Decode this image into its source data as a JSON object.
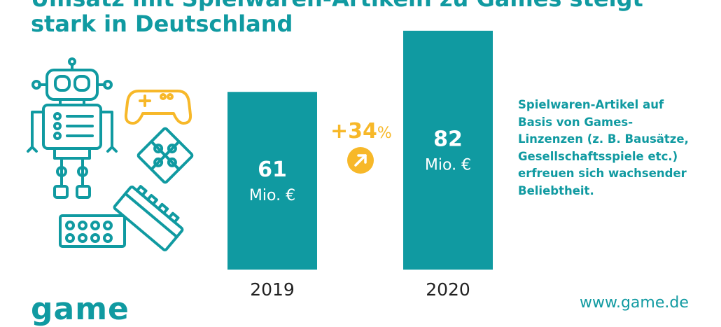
{
  "title": {
    "line1": "Umsatz mit Spielwaren-Artikeln zu Games steigt",
    "line2": "stark in Deutschland"
  },
  "chart_data": {
    "type": "bar",
    "categories": [
      "2019",
      "2020"
    ],
    "values": [
      61,
      82
    ],
    "unit": "Mio. €",
    "ylim": [
      0,
      100
    ],
    "bar_color": "#109aa1",
    "grid": false,
    "annotations": [
      {
        "text": "+34",
        "suffix": "%",
        "color": "#f7b829",
        "icon": "arrow-up-right-icon"
      }
    ]
  },
  "description": {
    "lines": [
      "Spielwaren-Artikel auf",
      "Basis von Games-",
      "Linzenzen (z. B. Bausätze,",
      "Gesellschaftsspiele etc.)",
      "erfreuen sich wachsender",
      "Beliebtheit."
    ]
  },
  "footer": {
    "logo": "game",
    "url": "www.game.de"
  },
  "illustration": {
    "icons": [
      "robot-icon",
      "gamepad-icon",
      "puzzle-icon",
      "building-brick-icon"
    ],
    "colors": {
      "teal": "#109aa1",
      "yellow": "#f7b829"
    }
  }
}
